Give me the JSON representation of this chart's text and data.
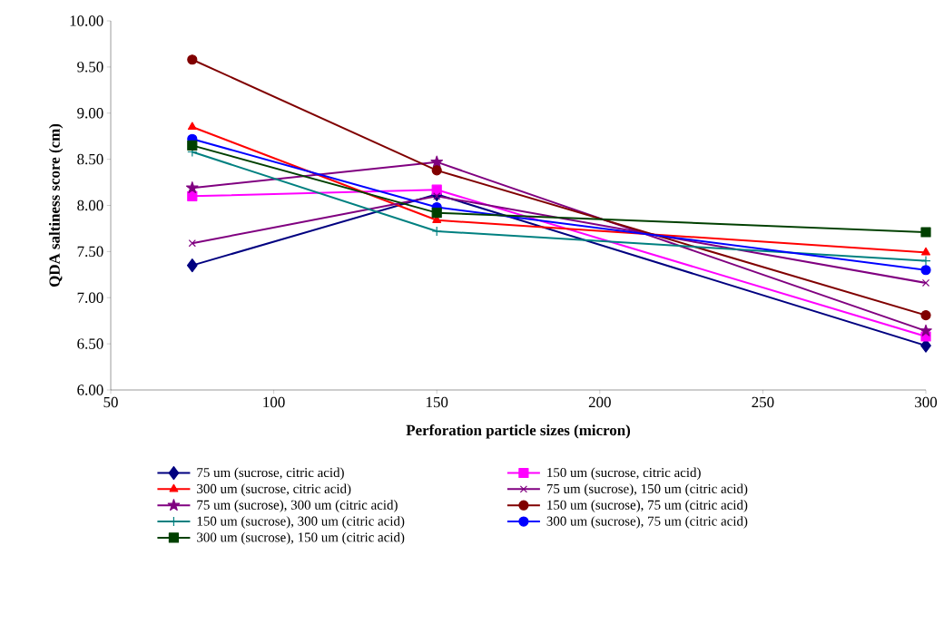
{
  "chart_data": {
    "type": "line",
    "xlabel": "Perforation particle sizes (micron)",
    "ylabel": "QDA saltiness score (cm)",
    "x": [
      75,
      150,
      300
    ],
    "xlim": [
      50,
      300
    ],
    "xticks": [
      50,
      100,
      150,
      200,
      250,
      300
    ],
    "ylim": [
      6,
      10
    ],
    "yticks": [
      {
        "value": 6,
        "label": "6.00"
      },
      {
        "value": 6.5,
        "label": "6.50"
      },
      {
        "value": 7,
        "label": "7.00"
      },
      {
        "value": 7.5,
        "label": "7.50"
      },
      {
        "value": 8,
        "label": "8.00"
      },
      {
        "value": 8.5,
        "label": "8.50"
      },
      {
        "value": 9,
        "label": "9.00"
      },
      {
        "value": 9.5,
        "label": "9.50"
      },
      {
        "value": 10,
        "label": "10.00"
      }
    ],
    "grid": false,
    "legend": "bottom",
    "line_style": "solid",
    "series": [
      {
        "name": "75 um (sucrose, citric acid)",
        "color": "#000080",
        "marker": "diamond",
        "values": [
          7.35,
          8.12,
          6.48
        ]
      },
      {
        "name": "150 um (sucrose, citric acid)",
        "color": "#ff00ff",
        "marker": "square",
        "values": [
          8.1,
          8.17,
          6.58
        ]
      },
      {
        "name": "300 um (sucrose, citric acid)",
        "color": "#ff0000",
        "marker": "triangle",
        "values": [
          8.85,
          7.84,
          7.49
        ]
      },
      {
        "name": "75 um (sucrose), 150 um (citric acid)",
        "color": "#800080",
        "marker": "cross",
        "values": [
          7.59,
          8.1,
          7.16
        ]
      },
      {
        "name": "75 um (sucrose), 300 um (citric acid)",
        "color": "#800080",
        "marker": "star",
        "values": [
          8.19,
          8.47,
          6.64
        ]
      },
      {
        "name": "150 um (sucrose), 75 um (citric acid)",
        "color": "#800000",
        "marker": "circle",
        "values": [
          9.58,
          8.38,
          6.81
        ]
      },
      {
        "name": "150 um (sucrose), 300 um (citric acid)",
        "color": "#008080",
        "marker": "plus",
        "values": [
          8.58,
          7.72,
          7.4
        ]
      },
      {
        "name": "300 um (sucrose), 75 um (citric acid)",
        "color": "#0000ff",
        "marker": "circle",
        "values": [
          8.72,
          7.98,
          7.3
        ]
      },
      {
        "name": "300 um (sucrose), 150 um (citric acid)",
        "color": "#004000",
        "marker": "square",
        "values": [
          8.65,
          7.92,
          7.71
        ]
      }
    ]
  }
}
